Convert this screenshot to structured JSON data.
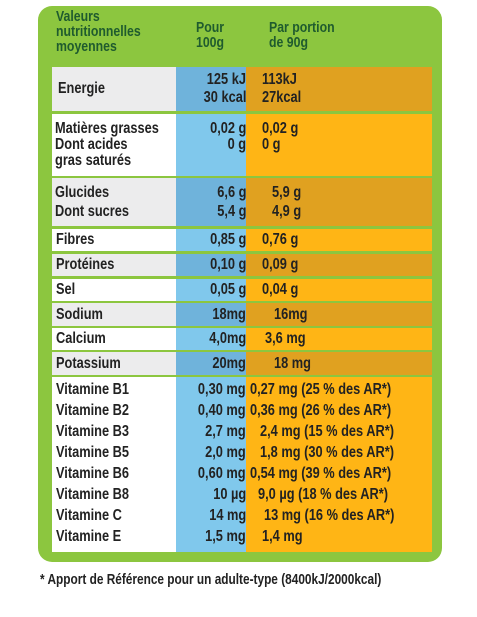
{
  "header": {
    "col_name": [
      "Valeurs",
      "nutritionnelles",
      "moyennes"
    ],
    "col_100g": [
      "Pour",
      "100g"
    ],
    "col_portion": [
      "Par portion",
      "de 90g"
    ]
  },
  "rows": {
    "energie": {
      "name": "Energie",
      "per100_kj": "125 kJ",
      "per100_kcal": "30 kcal",
      "portion_kj": "113kJ",
      "portion_kcal": "27kcal"
    },
    "matieres": {
      "name1": "Matières grasses",
      "name2": "Dont acides",
      "name3": "gras saturés",
      "per100_1": "0,02 g",
      "per100_2": "0 g",
      "portion_1": "0,02 g",
      "portion_2": "0 g"
    },
    "glucides": {
      "name1": "Glucides",
      "name2": "Dont sucres",
      "per100_1": "6,6 g",
      "per100_2": "5,4 g",
      "portion_1": "5,9 g",
      "portion_2": "4,9 g"
    },
    "fibres": {
      "name": "Fibres",
      "per100": "0,85 g",
      "portion": "0,76 g"
    },
    "proteines": {
      "name": "Protéines",
      "per100": "0,10 g",
      "portion": "0,09 g"
    },
    "sel": {
      "name": "Sel",
      "per100": "0,05 g",
      "portion": "0,04 g"
    },
    "sodium": {
      "name": "Sodium",
      "per100": "18mg",
      "portion": "16mg"
    },
    "calcium": {
      "name": "Calcium",
      "per100": "4,0mg",
      "portion": "3,6 mg"
    },
    "potassium": {
      "name": "Potassium",
      "per100": "20mg",
      "portion": "18 mg"
    }
  },
  "vitamins": [
    {
      "name": "Vitamine B1",
      "per100": "0,30 mg",
      "portion": "0,27 mg (25 % des AR*)"
    },
    {
      "name": "Vitamine B2",
      "per100": "0,40 mg",
      "portion": "0,36 mg (26 % des AR*)"
    },
    {
      "name": "Vitamine B3",
      "per100": "2,7 mg",
      "portion": "2,4 mg (15 % des AR*)"
    },
    {
      "name": "Vitamine B5",
      "per100": "2,0 mg",
      "portion": "1,8 mg (30 % des AR*)"
    },
    {
      "name": "Vitamine B6",
      "per100": "0,60 mg",
      "portion": "0,54 mg (39 % des AR*)"
    },
    {
      "name": "Vitamine B8",
      "per100": "10 µg",
      "portion": "9,0 µg (18 % des AR*)"
    },
    {
      "name": "Vitamine C",
      "per100": "14 mg",
      "portion": "13 mg (16 % des AR*)"
    },
    {
      "name": "Vitamine E",
      "per100": "1,5 mg",
      "portion": "1,4 mg"
    }
  ],
  "footnote": "* Apport de Référence pour un adulte-type (8400kJ/2000kcal)",
  "colors": {
    "frame": "#8cc63f",
    "per100": "#80c8ec",
    "portion": "#ffb515",
    "header_text": "#1f5b2e"
  }
}
